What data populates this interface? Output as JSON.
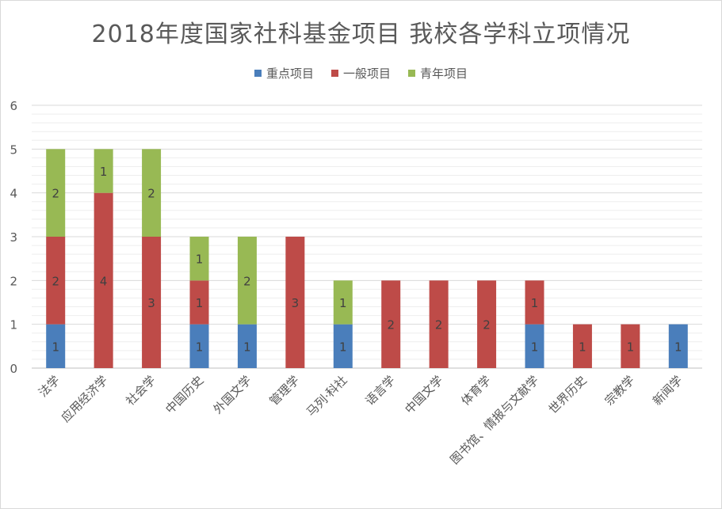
{
  "chart_data": {
    "type": "bar",
    "stacked": true,
    "title": "2018年度国家社科基金项目 我校各学科立项情况",
    "categories": [
      "法学",
      "应用经济学",
      "社会学",
      "中国历史",
      "外国文学",
      "管理学",
      "马列·科社",
      "语言学",
      "中国文学",
      "体育学",
      "图书馆、情报与文献学",
      "世界历史",
      "宗教学",
      "新闻学"
    ],
    "series": [
      {
        "name": "重点项目",
        "color": "#4a7ebb",
        "values": [
          1,
          0,
          0,
          1,
          1,
          0,
          1,
          0,
          0,
          0,
          1,
          0,
          0,
          1
        ]
      },
      {
        "name": "一般项目",
        "color": "#be4b48",
        "values": [
          2,
          4,
          3,
          1,
          0,
          3,
          0,
          2,
          2,
          2,
          1,
          1,
          1,
          0
        ]
      },
      {
        "name": "青年项目",
        "color": "#98b954",
        "values": [
          2,
          1,
          2,
          1,
          2,
          0,
          1,
          0,
          0,
          0,
          0,
          0,
          0,
          0
        ]
      }
    ],
    "ylim": [
      0,
      6
    ],
    "yticks": [
      0,
      1,
      2,
      3,
      4,
      5,
      6
    ],
    "minor_gridlines": true,
    "legend_position": "top",
    "data_labels": true,
    "xlabel": "",
    "ylabel": ""
  }
}
